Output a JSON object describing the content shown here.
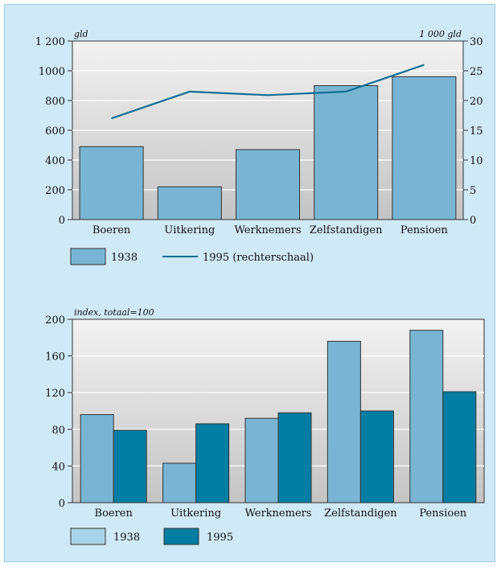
{
  "colors": {
    "panel_background": "#cfe9f6",
    "plot_gradient_top": "#f2f2f2",
    "plot_gradient_bottom": "#c4c4c4",
    "bar_1938": "#79b5d3",
    "bar_1995": "#007da3",
    "line_1995": "#0d6f92",
    "legend_1938_bottom": "#a9d3e8"
  },
  "chart_data": [
    {
      "type": "bar",
      "title": "",
      "xlabel": "",
      "ylabel": "gld",
      "y2label": "1 000 gld",
      "categories": [
        "Boeren",
        "Uitkering",
        "Werknemers",
        "Zelfstandigen",
        "Pensioen"
      ],
      "ylim": [
        0,
        1200
      ],
      "y2lim": [
        0,
        30
      ],
      "yticks": [
        "0",
        "200",
        "400",
        "600",
        "800",
        "1000",
        "1 200"
      ],
      "y2ticks": [
        "0",
        "5",
        "10",
        "15",
        "20",
        "25",
        "30"
      ],
      "grid": true,
      "legend_position": "bottom-left",
      "series": [
        {
          "name": "1938",
          "kind": "bar",
          "axis": "left",
          "values": [
            490,
            220,
            470,
            900,
            960
          ]
        },
        {
          "name": "1995 (rechterschaal)",
          "kind": "line",
          "axis": "right",
          "values": [
            17,
            21.5,
            20.9,
            21.5,
            26
          ]
        }
      ]
    },
    {
      "type": "bar",
      "title": "",
      "xlabel": "",
      "ylabel": "index, totaal=100",
      "categories": [
        "Boeren",
        "Uitkering",
        "Werknemers",
        "Zelfstandigen",
        "Pensioen"
      ],
      "ylim": [
        0,
        200
      ],
      "yticks": [
        "0",
        "40",
        "80",
        "120",
        "160",
        "200"
      ],
      "grid": true,
      "legend_position": "bottom-left",
      "series": [
        {
          "name": "1938",
          "values": [
            96,
            43,
            92,
            176,
            188
          ]
        },
        {
          "name": "1995",
          "values": [
            79,
            86,
            98,
            100,
            121
          ]
        }
      ]
    }
  ]
}
